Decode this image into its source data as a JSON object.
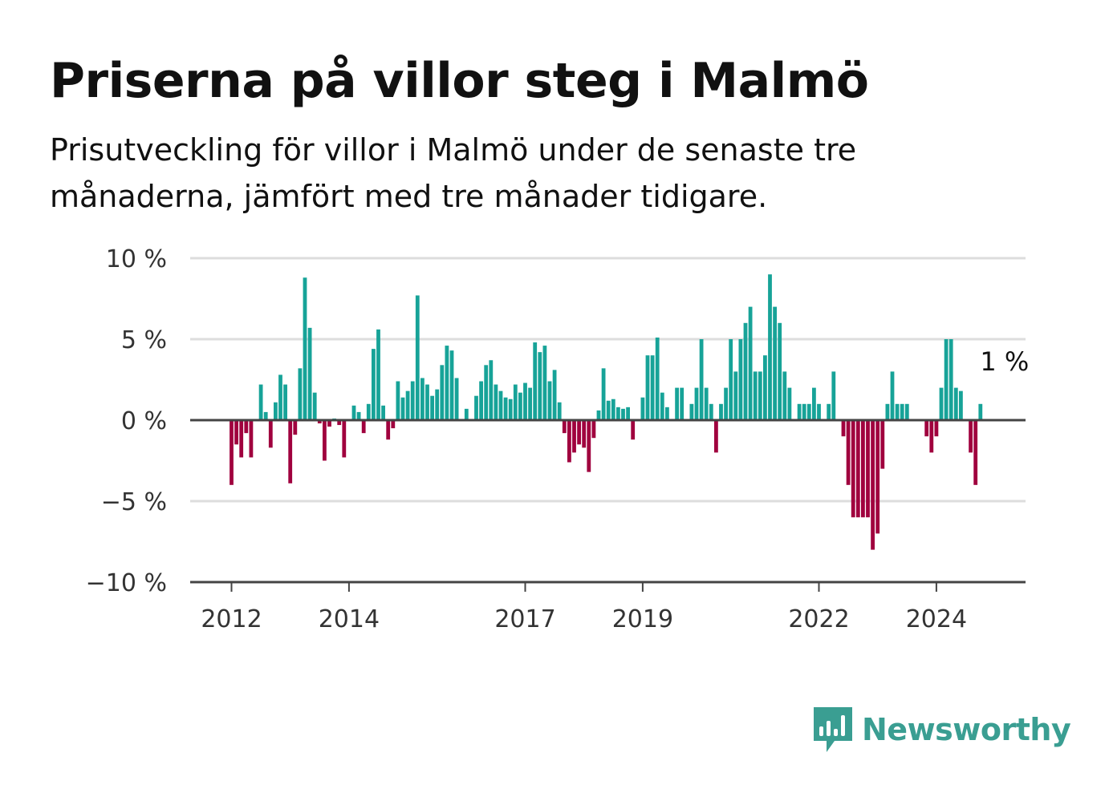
{
  "title": "Priserna på villor steg i Malmö",
  "subtitle": "Prisutveckling för villor i Malmö under de senaste tre månaderna, jämfört med tre månader tidigare.",
  "brand": {
    "name": "Newsworthy"
  },
  "colors": {
    "positive": "#17a398",
    "negative": "#a0003e",
    "grid": "#dddddd",
    "axis": "#444444",
    "brand": "#3a9e92"
  },
  "chart_data": {
    "type": "bar",
    "title": "Priserna på villor steg i Malmö",
    "xlabel": "",
    "ylabel": "",
    "ylim": [
      -10,
      10
    ],
    "y_ticks": [
      {
        "value": 10,
        "label": "10 %"
      },
      {
        "value": 5,
        "label": "5 %"
      },
      {
        "value": 0,
        "label": "0 %"
      },
      {
        "value": -5,
        "label": "−5 %"
      },
      {
        "value": -10,
        "label": "−10 %"
      }
    ],
    "x_ticks": [
      {
        "index": 0,
        "label": "2012"
      },
      {
        "index": 24,
        "label": "2014"
      },
      {
        "index": 60,
        "label": "2017"
      },
      {
        "index": 84,
        "label": "2019"
      },
      {
        "index": 120,
        "label": "2022"
      },
      {
        "index": 144,
        "label": "2024"
      }
    ],
    "end_label": "1 %",
    "grid": true,
    "values": [
      -4,
      -1.5,
      -2.3,
      -0.8,
      -2.3,
      0,
      2.2,
      0.5,
      -1.7,
      1.1,
      2.8,
      2.2,
      -3.9,
      -0.9,
      3.2,
      8.8,
      5.7,
      1.7,
      -0.2,
      -2.5,
      -0.4,
      0.1,
      -0.3,
      -2.3,
      0,
      0.9,
      0.5,
      -0.8,
      1,
      4.4,
      5.6,
      0.9,
      -1.2,
      -0.5,
      2.4,
      1.4,
      1.8,
      2.4,
      7.7,
      2.6,
      2.2,
      1.5,
      1.9,
      3.4,
      4.6,
      4.3,
      2.6,
      0,
      0.7,
      0,
      1.5,
      2.4,
      3.4,
      3.7,
      2.2,
      1.8,
      1.4,
      1.3,
      2.2,
      1.7,
      2.3,
      2,
      4.8,
      4.2,
      4.6,
      2.4,
      3.1,
      1.1,
      -0.8,
      -2.6,
      -2,
      -1.5,
      -1.7,
      -3.2,
      -1.1,
      0.6,
      3.2,
      1.2,
      1.3,
      0.8,
      0.7,
      0.8,
      -1.2,
      0,
      1.4,
      4,
      4,
      5.1,
      1.7,
      0.8,
      0,
      2,
      2,
      0,
      1,
      2,
      5,
      2,
      1,
      -2,
      1,
      2,
      5,
      3,
      5,
      6,
      7,
      3,
      3,
      4,
      9,
      7,
      6,
      3,
      2,
      0,
      1,
      1,
      1,
      2,
      1,
      0,
      1,
      3,
      0,
      -1,
      -4,
      -6,
      -6,
      -6,
      -6,
      -8,
      -7,
      -3,
      1,
      3,
      1,
      1,
      1,
      0,
      0,
      0,
      -1,
      -2,
      -1,
      2,
      5,
      5,
      2,
      1.8,
      0,
      -2,
      -4,
      1
    ]
  }
}
